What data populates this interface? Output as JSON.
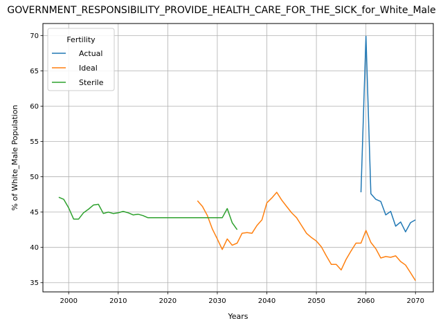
{
  "chart_data": {
    "type": "line",
    "title": "GOVERNMENT_RESPONSIBILITY_PROVIDE_HEALTH_CARE_FOR_THE_SICK_for_White_Male",
    "xlabel": "Years",
    "ylabel": "% of White_Male Population",
    "xlim": [
      1994.8,
      2073.6
    ],
    "ylim": [
      33.7,
      71.7
    ],
    "xticks": [
      2000,
      2010,
      2020,
      2030,
      2040,
      2050,
      2060,
      2070
    ],
    "yticks": [
      35,
      40,
      45,
      50,
      55,
      60,
      65,
      70
    ],
    "grid": true,
    "legend": {
      "title": "Fertility",
      "position": "top-left"
    },
    "series": [
      {
        "name": "Actual",
        "color": "#1f77b4",
        "x": [
          2059,
          2060,
          2061,
          2062,
          2063,
          2064,
          2065,
          2066,
          2067,
          2068,
          2069,
          2070
        ],
        "y": [
          47.8,
          69.9,
          47.6,
          46.8,
          46.5,
          44.6,
          45.1,
          43.0,
          43.6,
          42.2,
          43.5,
          43.9
        ]
      },
      {
        "name": "Ideal",
        "color": "#ff7f0e",
        "x": [
          2026,
          2027,
          2028,
          2029,
          2030,
          2031,
          2032,
          2033,
          2034,
          2035,
          2036,
          2037,
          2038,
          2039,
          2040,
          2041,
          2042,
          2043,
          2044,
          2045,
          2046,
          2047,
          2048,
          2049,
          2050,
          2051,
          2052,
          2053,
          2054,
          2055,
          2056,
          2057,
          2058,
          2059,
          2060,
          2061,
          2062,
          2063,
          2064,
          2065,
          2066,
          2067,
          2068,
          2069,
          2070
        ],
        "y": [
          46.6,
          45.8,
          44.5,
          42.6,
          41.2,
          39.7,
          41.2,
          40.3,
          40.6,
          42.0,
          42.1,
          42.0,
          43.1,
          43.9,
          46.3,
          47.0,
          47.8,
          46.7,
          45.8,
          44.9,
          44.2,
          43.1,
          42.0,
          41.4,
          40.9,
          40.1,
          38.8,
          37.6,
          37.6,
          36.8,
          38.3,
          39.5,
          40.6,
          40.6,
          42.4,
          40.7,
          39.8,
          38.5,
          38.7,
          38.6,
          38.8,
          38.0,
          37.5,
          36.4,
          35.3
        ]
      },
      {
        "name": "Sterile",
        "color": "#2ca02c",
        "x": [
          1998,
          1999,
          2000,
          2001,
          2002,
          2003,
          2004,
          2005,
          2006,
          2007,
          2008,
          2009,
          2010,
          2011,
          2012,
          2013,
          2014,
          2015,
          2016,
          2017,
          2018,
          2019,
          2020,
          2021,
          2022,
          2023,
          2024,
          2025,
          2026,
          2027,
          2028,
          2029,
          2030,
          2031,
          2032,
          2033,
          2034
        ],
        "y": [
          47.1,
          46.8,
          45.6,
          44.0,
          44.0,
          44.9,
          45.4,
          46.0,
          46.1,
          44.8,
          45.0,
          44.8,
          44.9,
          45.1,
          44.9,
          44.6,
          44.7,
          44.5,
          44.2,
          44.2,
          44.2,
          44.2,
          44.2,
          44.2,
          44.2,
          44.2,
          44.2,
          44.2,
          44.2,
          44.2,
          44.2,
          44.2,
          44.2,
          44.2,
          45.5,
          43.5,
          42.5
        ]
      }
    ]
  }
}
